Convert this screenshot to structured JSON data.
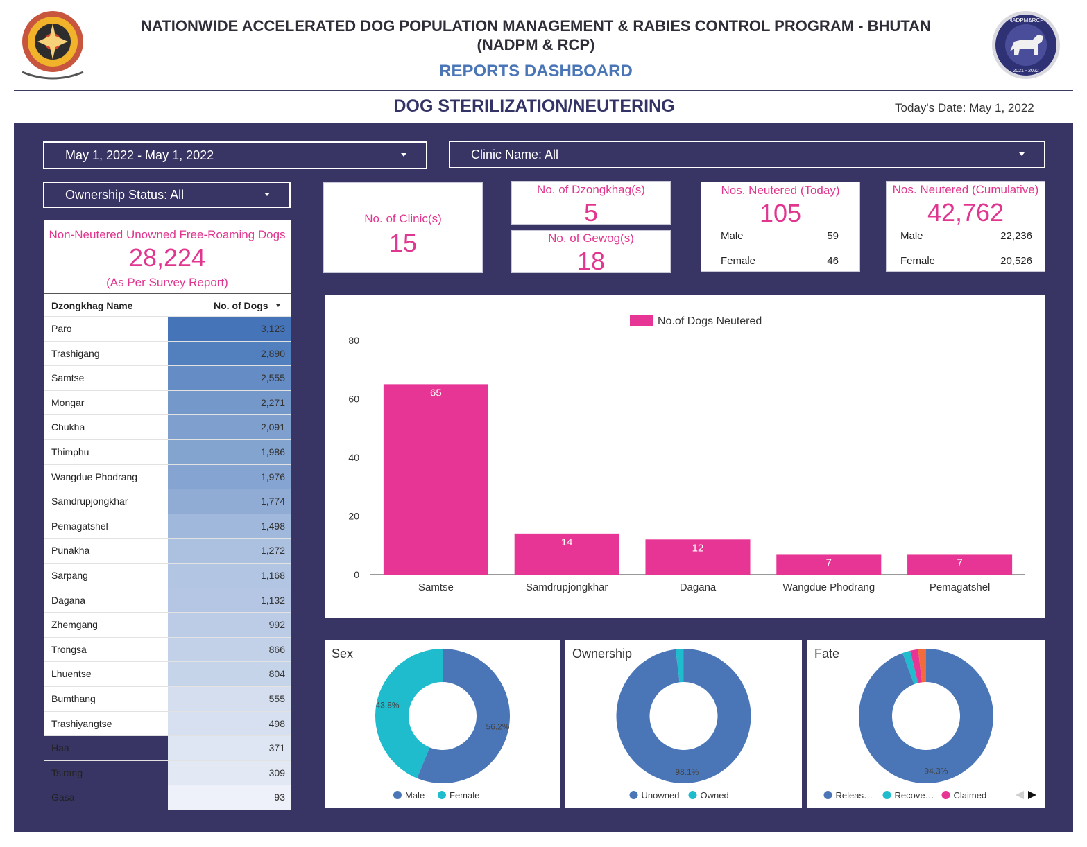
{
  "header": {
    "title_line1": "NATIONWIDE ACCELERATED DOG POPULATION MANAGEMENT & RABIES CONTROL PROGRAM - BHUTAN",
    "title_line2": "(NADPM & RCP)",
    "dashboard_label": "REPORTS DASHBOARD",
    "page_title": "DOG STERILIZATION/NEUTERING",
    "today_date": "Today's Date: May 1, 2022",
    "badge_top": "NADPM&RCP",
    "badge_bottom": "2021 - 2022"
  },
  "filters": {
    "date_range": "May 1, 2022 - May 1, 2022",
    "clinic": "Clinic Name: All",
    "ownership": "Ownership Status: All"
  },
  "kpis": {
    "clinics": {
      "label": "No. of Clinic(s)",
      "value": "15"
    },
    "dzongkhags": {
      "label": "No. of Dzongkhag(s)",
      "value": "5"
    },
    "gewogs": {
      "label": "No. of Gewog(s)",
      "value": "18"
    },
    "today": {
      "label": "Nos. Neutered (Today)",
      "value": "105",
      "male_label": "Male",
      "male": "59",
      "female_label": "Female",
      "female": "46"
    },
    "cumulative": {
      "label": "Nos. Neutered (Cumulative)",
      "value": "42,762",
      "male_label": "Male",
      "male": "22,236",
      "female_label": "Female",
      "female": "20,526"
    }
  },
  "survey": {
    "label": "Non-Neutered Unowned Free-Roaming Dogs",
    "value": "28,224",
    "note": "(As Per Survey Report)"
  },
  "table": {
    "col_name": "Dzongkhag Name",
    "col_value": "No. of Dogs",
    "rows": [
      {
        "name": "Paro",
        "value": "3,123",
        "num": 3123
      },
      {
        "name": "Trashigang",
        "value": "2,890",
        "num": 2890
      },
      {
        "name": "Samtse",
        "value": "2,555",
        "num": 2555
      },
      {
        "name": "Mongar",
        "value": "2,271",
        "num": 2271
      },
      {
        "name": "Chukha",
        "value": "2,091",
        "num": 2091
      },
      {
        "name": "Thimphu",
        "value": "1,986",
        "num": 1986
      },
      {
        "name": "Wangdue Phodrang",
        "value": "1,976",
        "num": 1976
      },
      {
        "name": "Samdrupjongkhar",
        "value": "1,774",
        "num": 1774
      },
      {
        "name": "Pemagatshel",
        "value": "1,498",
        "num": 1498
      },
      {
        "name": "Punakha",
        "value": "1,272",
        "num": 1272
      },
      {
        "name": "Sarpang",
        "value": "1,168",
        "num": 1168
      },
      {
        "name": "Dagana",
        "value": "1,132",
        "num": 1132
      },
      {
        "name": "Zhemgang",
        "value": "992",
        "num": 992
      },
      {
        "name": "Trongsa",
        "value": "866",
        "num": 866
      },
      {
        "name": "Lhuentse",
        "value": "804",
        "num": 804
      },
      {
        "name": "Bumthang",
        "value": "555",
        "num": 555
      },
      {
        "name": "Trashiyangtse",
        "value": "498",
        "num": 498
      },
      {
        "name": "Haa",
        "value": "371",
        "num": 371
      },
      {
        "name": "Tsirang",
        "value": "309",
        "num": 309
      },
      {
        "name": "Gasa",
        "value": "93",
        "num": 93
      }
    ]
  },
  "chart_data": [
    {
      "type": "bar",
      "categories": [
        "Samtse",
        "Samdrupjongkhar",
        "Dagana",
        "Wangdue Phodrang",
        "Pemagatshel"
      ],
      "series": [
        {
          "name": "No.of Dogs Neutered",
          "values": [
            65,
            14,
            12,
            7,
            7
          ],
          "color": "#e63594"
        }
      ],
      "ylim": [
        0,
        80
      ],
      "yticks": [
        0,
        20,
        40,
        60,
        80
      ],
      "legend": "top-center"
    },
    {
      "type": "pie",
      "title": "Sex",
      "labels": [
        "Male",
        "Female"
      ],
      "values": [
        56.2,
        43.8
      ],
      "value_labels": [
        "56.2%",
        "43.8%"
      ],
      "colors": [
        "#4a76b8",
        "#1fbccd"
      ]
    },
    {
      "type": "pie",
      "title": "Ownership",
      "labels": [
        "Unowned",
        "Owned"
      ],
      "values": [
        98.1,
        1.9
      ],
      "value_labels": [
        "98.1%",
        ""
      ],
      "colors": [
        "#4a76b8",
        "#1fbccd"
      ]
    },
    {
      "type": "pie",
      "title": "Fate",
      "labels": [
        "Releas…",
        "Recove…",
        "Claimed",
        ""
      ],
      "values": [
        94.3,
        1.9,
        1.9,
        1.9
      ],
      "value_labels": [
        "94.3%",
        "",
        "",
        ""
      ],
      "colors": [
        "#4a76b8",
        "#1fbccd",
        "#e63594",
        "#f26b3a"
      ]
    }
  ]
}
